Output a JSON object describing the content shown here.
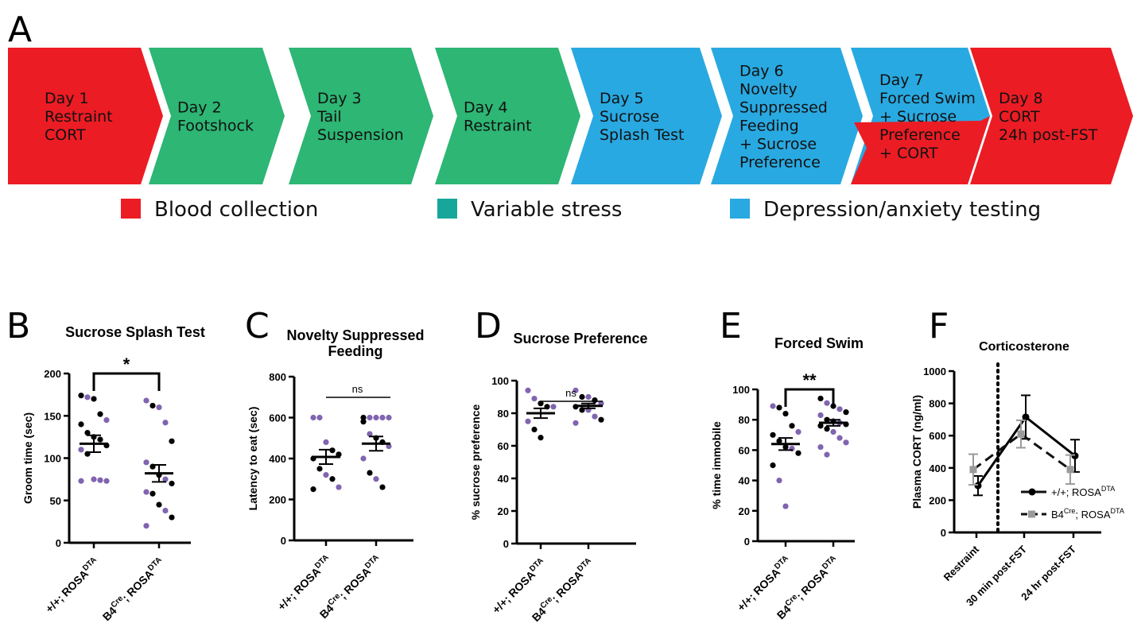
{
  "panel_a": {
    "letter": "A",
    "steps": [
      {
        "lines": [
          "Day 1",
          "Restraint",
          "CORT"
        ],
        "color": "#ec1c24"
      },
      {
        "lines": [
          "Day 2",
          "Footshock"
        ],
        "color": "#2db674"
      },
      {
        "lines": [
          "Day 3",
          "Tail",
          "Suspension"
        ],
        "color": "#2db674"
      },
      {
        "lines": [
          "Day 4",
          "Restraint"
        ],
        "color": "#2db674"
      },
      {
        "lines": [
          "Day 5",
          "Sucrose",
          "Splash Test"
        ],
        "color": "#29a9e1"
      },
      {
        "lines": [
          "Day 6",
          "Novelty",
          "Suppressed",
          "Feeding",
          "+ Sucrose",
          "Preference"
        ],
        "color": "#29a9e1"
      },
      {
        "lines": [
          "Day 7",
          "Forced Swim",
          "+ Sucrose",
          "Preference",
          "+ CORT"
        ],
        "color": "#29a9e1",
        "lower_color": "#ec1c24"
      },
      {
        "lines": [
          "Day 8",
          "CORT",
          "24h post-FST"
        ],
        "color": "#ec1c24"
      }
    ],
    "legend": [
      {
        "label": "Blood collection",
        "color": "#ec1c24"
      },
      {
        "label": "Variable stress",
        "color": "#17a79a"
      },
      {
        "label": "Depression/anxiety testing",
        "color": "#29a9e1"
      }
    ]
  },
  "colors": {
    "purple": "#8064b0",
    "black": "#000000",
    "gray": "#9a9a9a"
  },
  "group_labels": [
    {
      "main": "+/+; ROSA",
      "sup": "DTA"
    },
    {
      "main": "B4",
      "sup1": "Cre",
      "mid": "; ROSA",
      "sup": "DTA"
    }
  ],
  "chart_data": [
    {
      "panel": "B",
      "type": "scatter",
      "title": "Sucrose Splash Test",
      "ylabel": "Groom time (sec)",
      "ylim": [
        0,
        200
      ],
      "yticks": [
        0,
        50,
        100,
        150,
        200
      ],
      "significance": "*",
      "groups": [
        {
          "mean": 117,
          "sem": 10,
          "black": [
            174,
            170,
            152,
            140,
            130,
            125,
            122,
            115,
            105
          ],
          "purple": [
            172,
            145,
            110,
            75,
            74,
            73,
            73
          ]
        },
        {
          "mean": 82,
          "sem": 10,
          "black": [
            162,
            120,
            90,
            80,
            70,
            58,
            45,
            30
          ],
          "purple": [
            168,
            160,
            142,
            95,
            75,
            60,
            38,
            20
          ]
        }
      ]
    },
    {
      "panel": "C",
      "type": "scatter",
      "title": "Novelty Suppressed Feeding",
      "ylabel": "Latency to eat (sec)",
      "ylim": [
        0,
        800
      ],
      "yticks": [
        0,
        200,
        400,
        600,
        800
      ],
      "significance": "ns",
      "groups": [
        {
          "mean": 408,
          "sem": 35,
          "black": [
            440,
            420,
            400,
            350,
            300,
            250
          ],
          "purple": [
            600,
            600,
            480,
            320,
            260
          ]
        },
        {
          "mean": 473,
          "sem": 35,
          "black": [
            600,
            580,
            500,
            480,
            330,
            260
          ],
          "purple": [
            600,
            600,
            600,
            600,
            520,
            460,
            400,
            300
          ]
        }
      ]
    },
    {
      "panel": "D",
      "type": "scatter",
      "title": "Sucrose Preference",
      "ylabel": "% sucrose preference",
      "ylim": [
        0,
        100
      ],
      "yticks": [
        0,
        20,
        40,
        60,
        80,
        100
      ],
      "significance": "ns",
      "groups": [
        {
          "mean": 80,
          "sem": 3,
          "black": [
            86,
            84,
            70,
            65
          ],
          "purple": [
            94,
            89,
            84,
            75
          ]
        },
        {
          "mean": 84.5,
          "sem": 1.5,
          "black": [
            90,
            88,
            84,
            82,
            76
          ],
          "purple": [
            94,
            90,
            86,
            82,
            78,
            74
          ]
        }
      ]
    },
    {
      "panel": "E",
      "type": "scatter",
      "title": "Forced Swim",
      "ylabel": "% time immobile",
      "ylim": [
        0,
        100
      ],
      "yticks": [
        0,
        20,
        40,
        60,
        80,
        100
      ],
      "significance": "**",
      "groups": [
        {
          "mean": 64,
          "sem": 4,
          "black": [
            88,
            84,
            76,
            70,
            66,
            62,
            58,
            50
          ],
          "purple": [
            89,
            72,
            61,
            40,
            23
          ]
        },
        {
          "mean": 78,
          "sem": 2,
          "black": [
            94,
            89,
            85,
            80,
            79,
            77,
            76,
            74
          ],
          "purple": [
            91,
            87,
            83,
            78,
            72,
            68,
            65,
            62,
            57
          ]
        }
      ]
    },
    {
      "panel": "F",
      "type": "line",
      "title": "Corticosterone",
      "ylabel": "Plasma CORT (ng/ml)",
      "ylim": [
        0,
        1000
      ],
      "yticks": [
        0,
        200,
        400,
        600,
        800,
        1000
      ],
      "categories": [
        "Restraint",
        "30 min post-FST",
        "24 hr post-FST"
      ],
      "series": [
        {
          "name": "+/+; ROSA",
          "sup": "DTA",
          "values": [
            290,
            715,
            475
          ],
          "err": [
            60,
            135,
            100
          ],
          "color": "#000000",
          "dash": false
        },
        {
          "name": "B4",
          "sup1": "Cre",
          "mid": "; ROSA",
          "sup": "DTA",
          "values": [
            390,
            610,
            390
          ],
          "err": [
            95,
            85,
            90
          ],
          "color": "#9a9a9a",
          "dash": true
        }
      ]
    }
  ]
}
